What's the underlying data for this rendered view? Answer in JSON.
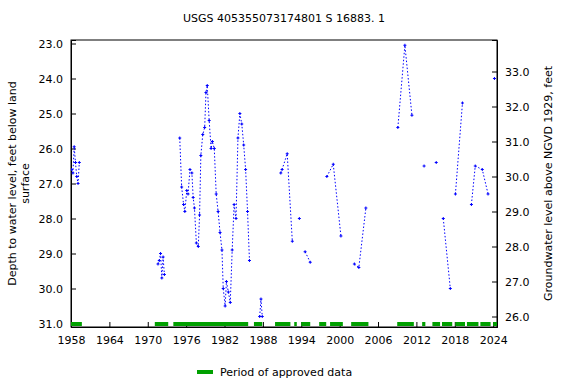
{
  "chart_data": {
    "type": "line",
    "title": "USGS 405355073174801 S 16883. 1",
    "y_label": [
      "Depth to water level, feet below land",
      "surface"
    ],
    "y2_label": "Groundwater level above NGVD 1929, feet",
    "xlim": [
      1958,
      2024.6
    ],
    "xticks": [
      1958,
      1964,
      1970,
      1976,
      1982,
      1988,
      1994,
      2000,
      2006,
      2012,
      2018,
      2024
    ],
    "ylim": [
      22.9,
      31.1
    ],
    "yticks": [
      {
        "value": 23,
        "label": "23.0"
      },
      {
        "value": 24,
        "label": "24.0"
      },
      {
        "value": 25,
        "label": "25.0"
      },
      {
        "value": 26,
        "label": "26.0"
      },
      {
        "value": 27,
        "label": "27.0"
      },
      {
        "value": 28,
        "label": "28.0"
      },
      {
        "value": 29,
        "label": "29.0"
      },
      {
        "value": 30,
        "label": "30.0"
      },
      {
        "value": 31,
        "label": "31.0"
      }
    ],
    "y2lim": [
      25.7,
      33.9
    ],
    "y2ticks": [
      {
        "value": 26,
        "label": "26.0"
      },
      {
        "value": 27,
        "label": "27.0"
      },
      {
        "value": 28,
        "label": "28.0"
      },
      {
        "value": 29,
        "label": "29.0"
      },
      {
        "value": 30,
        "label": "30.0"
      },
      {
        "value": 31,
        "label": "31.0"
      },
      {
        "value": 32,
        "label": "32.0"
      },
      {
        "value": 33,
        "label": "33.0"
      }
    ],
    "grid": false,
    "series": [
      {
        "color": "#0000ff",
        "marker": "plus",
        "line_style": "dotted",
        "x": [
          1958.1,
          1958.3,
          1958.5,
          1958.7,
          1958.9,
          1959.1,
          1959.3,
          null,
          1971.6,
          1971.8,
          1972.0,
          1972.2,
          1972.4,
          1972.6,
          null,
          1975.0,
          1975.3,
          1975.6,
          1975.8,
          1976.1,
          1976.3,
          1976.6,
          1976.9,
          1977.1,
          1977.3,
          1977.6,
          1977.9,
          1978.1,
          1978.3,
          1978.6,
          1978.9,
          1979.1,
          1979.3,
          1979.6,
          1979.9,
          1980.1,
          1980.4,
          1980.7,
          1981.0,
          1981.3,
          1981.6,
          1981.8,
          1982.1,
          1982.3,
          1982.6,
          1982.9,
          1983.2,
          1983.5,
          1983.8,
          1984.1,
          1984.4,
          1984.7,
          1985.0,
          1985.3,
          1985.6,
          1985.9,
          null,
          1987.5,
          1987.7,
          1987.9,
          null,
          1990.8,
          1991.0,
          1991.8,
          1992.6,
          null,
          1993.7,
          null,
          1994.6,
          1995.4,
          null,
          1998.0,
          1999.0,
          2000.2,
          null,
          2002.3,
          2003.0,
          2004.1,
          null,
          2009.1,
          2010.2,
          2011.3,
          null,
          2013.2,
          null,
          2015.1,
          null,
          2016.2,
          2017.3,
          null,
          2018.1,
          2019.2,
          null,
          2020.6,
          2021.2,
          2022.3,
          2023.2,
          null,
          2024.2
        ],
        "values": [
          26.6,
          26.7,
          25.95,
          26.4,
          26.8,
          27.0,
          26.4,
          null,
          29.3,
          29.2,
          29.0,
          29.7,
          29.1,
          29.6,
          null,
          25.7,
          27.1,
          27.6,
          27.8,
          27.2,
          27.3,
          26.6,
          26.7,
          27.4,
          27.7,
          28.7,
          28.8,
          27.9,
          26.2,
          25.6,
          25.4,
          24.4,
          24.2,
          25.2,
          26.0,
          25.8,
          26.0,
          27.3,
          27.8,
          28.4,
          28.9,
          30.0,
          30.5,
          29.8,
          30.1,
          30.4,
          28.9,
          27.6,
          28.0,
          25.7,
          25.0,
          25.3,
          25.9,
          26.6,
          27.8,
          29.2,
          null,
          30.8,
          30.3,
          30.8,
          null,
          26.7,
          26.6,
          26.15,
          28.65,
          null,
          28.0,
          null,
          28.95,
          29.25,
          null,
          26.8,
          26.45,
          28.5,
          null,
          29.3,
          29.4,
          27.7,
          null,
          25.4,
          23.05,
          25.05,
          null,
          26.5,
          null,
          26.4,
          null,
          28.0,
          30.0,
          null,
          27.3,
          24.7,
          null,
          27.6,
          26.5,
          26.6,
          27.3,
          null,
          24.0
        ]
      }
    ],
    "approved_periods": {
      "name": "Period of approved data",
      "color": "#00a000",
      "starts": [
        1958.0,
        1971.1,
        1974.0,
        1986.6,
        1989.9,
        1992.9,
        1994.0,
        1996.8,
        1998.5,
        2001.8,
        2009.0,
        2012.9,
        2014.5,
        2016.0,
        2018.1,
        2019.9,
        2022.0,
        2024.0
      ],
      "ends": [
        1959.7,
        1973.2,
        1985.7,
        1987.9,
        1992.3,
        1993.3,
        1995.4,
        1997.9,
        2000.5,
        2004.5,
        2011.6,
        2013.4,
        2015.7,
        2017.6,
        2019.6,
        2021.7,
        2023.6,
        2024.6
      ]
    }
  }
}
